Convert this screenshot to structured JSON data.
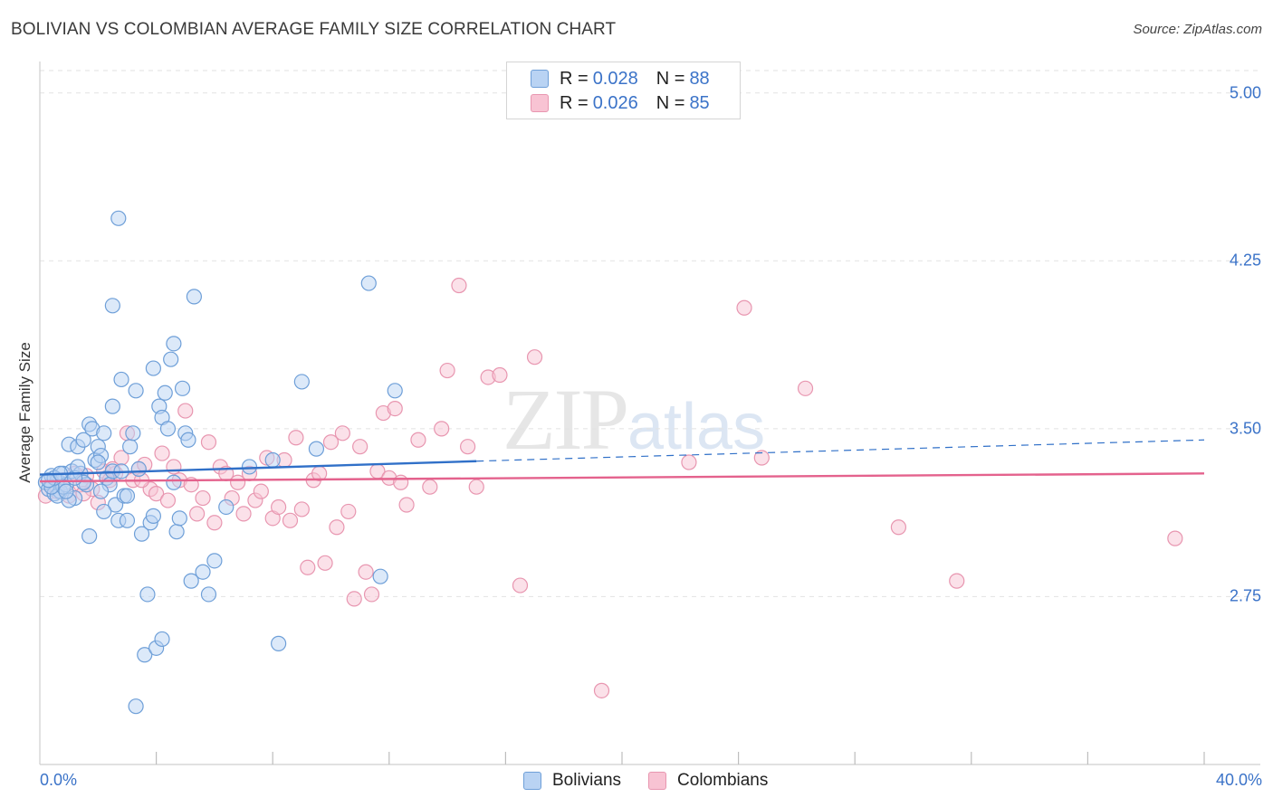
{
  "header": {
    "title": "BOLIVIAN VS COLOMBIAN AVERAGE FAMILY SIZE CORRELATION CHART",
    "source": "Source: ZipAtlas.com"
  },
  "watermark": {
    "zip": "ZIP",
    "atlas": "atlas"
  },
  "colors": {
    "bolivians_fill": "#b9d3f3",
    "bolivians_stroke": "#6e9fd8",
    "bolivians_line": "#3070c8",
    "colombians_fill": "#f8c3d3",
    "colombians_stroke": "#e896b0",
    "colombians_line": "#e4628d",
    "tick_text": "#3b73c8",
    "grid": "#e2e2e2"
  },
  "legend": {
    "rows": [
      {
        "r_label": "R = ",
        "r_value": "0.028",
        "n_label": "N = ",
        "n_value": "88"
      },
      {
        "r_label": "R = ",
        "r_value": "0.026",
        "n_label": "N = ",
        "n_value": "85"
      }
    ],
    "bottom": [
      "Bolivians",
      "Colombians"
    ]
  },
  "chart_data": {
    "type": "scatter",
    "title": "BOLIVIAN VS COLOMBIAN AVERAGE FAMILY SIZE CORRELATION CHART",
    "xlabel": "",
    "ylabel": "Average Family Size",
    "xlim": [
      0,
      40
    ],
    "ylim": [
      2.0,
      5.1
    ],
    "x_tick_labels": [
      "0.0%",
      "40.0%"
    ],
    "y_ticks": [
      2.75,
      3.5,
      4.25,
      5.0
    ],
    "y_tick_labels": [
      "2.75",
      "3.50",
      "4.25",
      "5.00"
    ],
    "grid": true,
    "legend_position": "top-center",
    "series": [
      {
        "name": "Bolivians",
        "r": 0.028,
        "n": 88,
        "trend": {
          "x": [
            0,
            15
          ],
          "y": [
            3.295,
            3.355
          ],
          "dashed_to": [
            40,
            3.45
          ]
        },
        "points": [
          [
            0.2,
            3.26
          ],
          [
            0.3,
            3.23
          ],
          [
            0.4,
            3.29
          ],
          [
            0.5,
            3.21
          ],
          [
            0.6,
            3.27
          ],
          [
            0.7,
            3.22
          ],
          [
            0.8,
            3.3
          ],
          [
            0.9,
            3.25
          ],
          [
            1.0,
            3.43
          ],
          [
            1.1,
            3.31
          ],
          [
            1.2,
            3.19
          ],
          [
            1.3,
            3.42
          ],
          [
            1.4,
            3.3
          ],
          [
            1.5,
            3.45
          ],
          [
            1.6,
            3.25
          ],
          [
            1.7,
            3.52
          ],
          [
            1.8,
            3.5
          ],
          [
            1.9,
            3.36
          ],
          [
            2.0,
            3.42
          ],
          [
            2.1,
            3.38
          ],
          [
            2.2,
            3.48
          ],
          [
            2.3,
            3.28
          ],
          [
            2.4,
            3.25
          ],
          [
            2.5,
            3.6
          ],
          [
            2.6,
            3.16
          ],
          [
            2.7,
            3.09
          ],
          [
            2.8,
            3.72
          ],
          [
            2.9,
            3.2
          ],
          [
            3.0,
            3.09
          ],
          [
            3.1,
            3.42
          ],
          [
            3.2,
            3.48
          ],
          [
            3.3,
            3.67
          ],
          [
            3.4,
            3.32
          ],
          [
            3.5,
            3.03
          ],
          [
            3.6,
            2.49
          ],
          [
            3.7,
            2.76
          ],
          [
            3.8,
            3.08
          ],
          [
            3.9,
            3.77
          ],
          [
            4.0,
            2.52
          ],
          [
            4.1,
            3.6
          ],
          [
            4.2,
            3.55
          ],
          [
            4.3,
            3.66
          ],
          [
            4.4,
            3.5
          ],
          [
            4.5,
            3.81
          ],
          [
            4.6,
            3.88
          ],
          [
            4.7,
            3.04
          ],
          [
            4.8,
            3.1
          ],
          [
            4.9,
            3.68
          ],
          [
            5.0,
            3.48
          ],
          [
            5.1,
            3.45
          ],
          [
            5.2,
            2.82
          ],
          [
            5.3,
            4.09
          ],
          [
            5.6,
            2.86
          ],
          [
            5.8,
            2.76
          ],
          [
            6.0,
            2.91
          ],
          [
            6.4,
            3.15
          ],
          [
            2.5,
            4.05
          ],
          [
            2.7,
            4.44
          ],
          [
            3.3,
            2.26
          ],
          [
            4.2,
            2.56
          ],
          [
            7.2,
            3.33
          ],
          [
            8.0,
            3.36
          ],
          [
            8.2,
            2.54
          ],
          [
            9.0,
            3.71
          ],
          [
            9.5,
            3.41
          ],
          [
            11.3,
            4.15
          ],
          [
            11.7,
            2.84
          ],
          [
            12.2,
            3.67
          ],
          [
            0.6,
            3.2
          ],
          [
            0.8,
            3.24
          ],
          [
            1.0,
            3.18
          ],
          [
            1.5,
            3.26
          ],
          [
            2.0,
            3.35
          ],
          [
            2.2,
            3.13
          ],
          [
            2.5,
            3.31
          ],
          [
            3.0,
            3.2
          ],
          [
            1.7,
            3.02
          ],
          [
            0.4,
            3.24
          ],
          [
            0.9,
            3.22
          ],
          [
            1.2,
            3.28
          ],
          [
            0.5,
            3.28
          ],
          [
            2.8,
            3.31
          ],
          [
            3.9,
            3.11
          ],
          [
            4.6,
            3.26
          ],
          [
            0.3,
            3.27
          ],
          [
            0.7,
            3.3
          ],
          [
            1.3,
            3.33
          ],
          [
            2.1,
            3.22
          ]
        ]
      },
      {
        "name": "Colombians",
        "r": 0.026,
        "n": 85,
        "trend": {
          "x": [
            0,
            40
          ],
          "y": [
            3.265,
            3.3
          ]
        },
        "points": [
          [
            0.2,
            3.2
          ],
          [
            0.4,
            3.25
          ],
          [
            0.6,
            3.22
          ],
          [
            0.8,
            3.27
          ],
          [
            1.0,
            3.2
          ],
          [
            1.2,
            3.3
          ],
          [
            1.4,
            3.25
          ],
          [
            1.6,
            3.29
          ],
          [
            1.8,
            3.23
          ],
          [
            2.0,
            3.17
          ],
          [
            2.2,
            3.31
          ],
          [
            2.4,
            3.27
          ],
          [
            2.6,
            3.3
          ],
          [
            2.8,
            3.37
          ],
          [
            3.0,
            3.48
          ],
          [
            3.2,
            3.27
          ],
          [
            3.4,
            3.32
          ],
          [
            3.6,
            3.34
          ],
          [
            3.8,
            3.23
          ],
          [
            4.0,
            3.21
          ],
          [
            4.2,
            3.39
          ],
          [
            4.4,
            3.18
          ],
          [
            4.6,
            3.33
          ],
          [
            4.8,
            3.27
          ],
          [
            5.0,
            3.58
          ],
          [
            5.2,
            3.25
          ],
          [
            5.4,
            3.12
          ],
          [
            5.6,
            3.19
          ],
          [
            5.8,
            3.44
          ],
          [
            6.0,
            3.08
          ],
          [
            6.2,
            3.33
          ],
          [
            6.4,
            3.3
          ],
          [
            6.6,
            3.19
          ],
          [
            6.8,
            3.26
          ],
          [
            7.0,
            3.12
          ],
          [
            7.2,
            3.3
          ],
          [
            7.4,
            3.18
          ],
          [
            7.6,
            3.22
          ],
          [
            7.8,
            3.37
          ],
          [
            8.0,
            3.1
          ],
          [
            8.2,
            3.15
          ],
          [
            8.4,
            3.36
          ],
          [
            8.6,
            3.09
          ],
          [
            8.8,
            3.46
          ],
          [
            9.0,
            3.14
          ],
          [
            9.2,
            2.88
          ],
          [
            9.4,
            3.27
          ],
          [
            9.6,
            3.3
          ],
          [
            9.8,
            2.9
          ],
          [
            10.0,
            3.44
          ],
          [
            10.2,
            3.06
          ],
          [
            10.4,
            3.48
          ],
          [
            10.6,
            3.13
          ],
          [
            10.8,
            2.74
          ],
          [
            11.0,
            3.42
          ],
          [
            11.2,
            2.86
          ],
          [
            11.4,
            2.76
          ],
          [
            11.6,
            3.31
          ],
          [
            11.8,
            3.57
          ],
          [
            12.0,
            3.28
          ],
          [
            12.2,
            3.59
          ],
          [
            12.4,
            3.26
          ],
          [
            12.6,
            3.16
          ],
          [
            13.0,
            3.45
          ],
          [
            13.4,
            3.24
          ],
          [
            13.8,
            3.5
          ],
          [
            14.0,
            3.76
          ],
          [
            14.4,
            4.14
          ],
          [
            14.7,
            3.42
          ],
          [
            15.0,
            3.24
          ],
          [
            15.4,
            3.73
          ],
          [
            15.8,
            3.74
          ],
          [
            16.5,
            2.8
          ],
          [
            17.0,
            3.82
          ],
          [
            19.3,
            2.33
          ],
          [
            22.3,
            3.35
          ],
          [
            24.2,
            4.04
          ],
          [
            24.8,
            3.37
          ],
          [
            26.3,
            3.68
          ],
          [
            29.5,
            3.06
          ],
          [
            31.5,
            2.82
          ],
          [
            39.0,
            3.01
          ],
          [
            1.5,
            3.21
          ],
          [
            2.5,
            3.32
          ],
          [
            3.5,
            3.27
          ]
        ]
      }
    ]
  }
}
